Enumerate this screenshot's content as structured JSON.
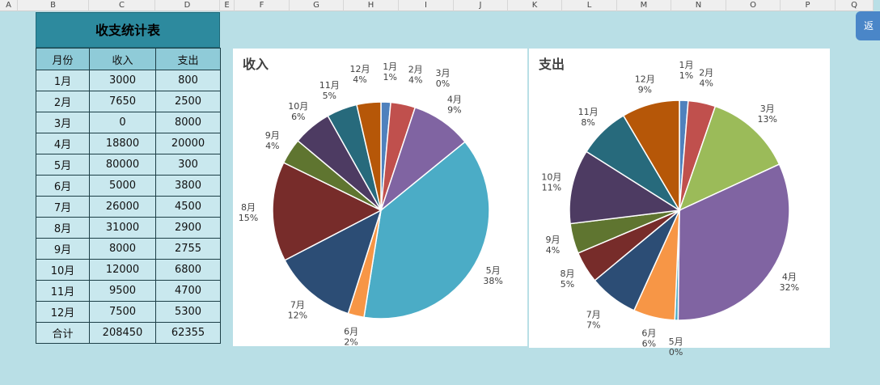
{
  "spreadsheet": {
    "columns": [
      "A",
      "B",
      "C",
      "D",
      "E",
      "F",
      "G",
      "H",
      "I",
      "J",
      "K",
      "L",
      "M",
      "N",
      "O",
      "P",
      "Q"
    ],
    "side_button_label": "返"
  },
  "table": {
    "title": "收支统计表",
    "headers": [
      "月份",
      "收入",
      "支出"
    ],
    "rows": [
      [
        "1月",
        "3000",
        "800"
      ],
      [
        "2月",
        "7650",
        "2500"
      ],
      [
        "3月",
        "0",
        "8000"
      ],
      [
        "4月",
        "18800",
        "20000"
      ],
      [
        "5月",
        "80000",
        "300"
      ],
      [
        "6月",
        "5000",
        "3800"
      ],
      [
        "7月",
        "26000",
        "4500"
      ],
      [
        "8月",
        "31000",
        "2900"
      ],
      [
        "9月",
        "8000",
        "2755"
      ],
      [
        "10月",
        "12000",
        "6800"
      ],
      [
        "11月",
        "9500",
        "4700"
      ],
      [
        "12月",
        "7500",
        "5300"
      ]
    ],
    "total": [
      "合计",
      "208450",
      "62355"
    ]
  },
  "colors": [
    "#4f81bd",
    "#c0504d",
    "#9bbb59",
    "#8064a2",
    "#4bacc6",
    "#f79646",
    "#2c4d75",
    "#772c2a",
    "#5f7530",
    "#4d3b62",
    "#276a7c",
    "#b65708"
  ],
  "chart_data": [
    {
      "type": "pie",
      "title": "收入",
      "categories": [
        "1月",
        "2月",
        "3月",
        "4月",
        "5月",
        "6月",
        "7月",
        "8月",
        "9月",
        "10月",
        "11月",
        "12月"
      ],
      "values": [
        3000,
        7650,
        0,
        18800,
        80000,
        5000,
        26000,
        31000,
        8000,
        12000,
        9500,
        7500
      ],
      "percent_labels": [
        "1%",
        "4%",
        "0%",
        "9%",
        "38%",
        "2%",
        "12%",
        "15%",
        "4%",
        "6%",
        "5%",
        "4%"
      ]
    },
    {
      "type": "pie",
      "title": "支出",
      "categories": [
        "1月",
        "2月",
        "3月",
        "4月",
        "5月",
        "6月",
        "7月",
        "8月",
        "9月",
        "10月",
        "11月",
        "12月"
      ],
      "values": [
        800,
        2500,
        8000,
        20000,
        300,
        3800,
        4500,
        2900,
        2755,
        6800,
        4700,
        5300
      ],
      "percent_labels": [
        "1%",
        "4%",
        "13%",
        "32%",
        "0%",
        "6%",
        "7%",
        "5%",
        "4%",
        "11%",
        "8%",
        "9%"
      ]
    }
  ]
}
